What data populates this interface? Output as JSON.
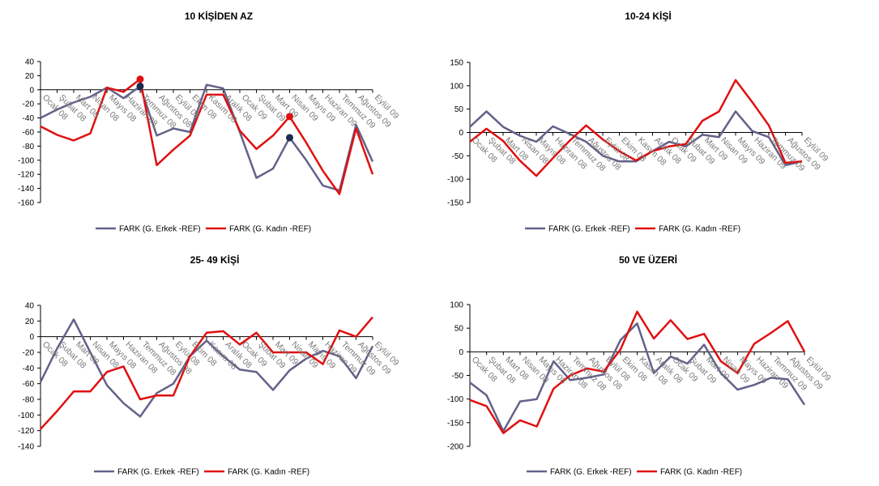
{
  "months": [
    "Ocak 08",
    "Şubat 08",
    "Mart 08",
    "Nisan 08",
    "Mayıs 08",
    "Haziran 08",
    "Temmuz 08",
    "Ağustos 08",
    "Eylül 08",
    "Ekim 08",
    "Kasım 08",
    "Aralık 08",
    "Ocak 09",
    "Şubat 09",
    "Mart 09",
    "Nisan 09",
    "Mayıs 09",
    "Haziran 09",
    "Temmuz 09",
    "Ağustos 09",
    "Eylül 09"
  ],
  "colors": {
    "erkek": "#62628a",
    "kadin": "#e01010",
    "axis": "#000000"
  },
  "chart_data": [
    {
      "type": "line",
      "title": "10 KİŞİDEN AZ",
      "ylim": [
        -160,
        40
      ],
      "yticks": [
        -160,
        -140,
        -120,
        -100,
        -80,
        -60,
        -40,
        -20,
        0,
        20,
        40
      ],
      "categories_ref": "months",
      "highlighted_points": [
        {
          "series": 0,
          "index": 6
        },
        {
          "series": 0,
          "index": 15
        },
        {
          "series": 1,
          "index": 6
        },
        {
          "series": 1,
          "index": 15
        }
      ],
      "series": [
        {
          "name": "FARK (G. Erkek -REF)",
          "values": [
            -40,
            -28,
            -18,
            -10,
            3,
            -12,
            5,
            -65,
            -55,
            -60,
            7,
            2,
            -60,
            -125,
            -112,
            -68,
            -100,
            -136,
            -143,
            -50,
            -102
          ]
        },
        {
          "name": "FARK (G. Kadın -REF)",
          "values": [
            -52,
            -64,
            -72,
            -62,
            3,
            -3,
            15,
            -107,
            -85,
            -65,
            -7,
            -7,
            -58,
            -84,
            -65,
            -38,
            -75,
            -115,
            -148,
            -55,
            -120
          ]
        }
      ],
      "legend": "bottom"
    },
    {
      "type": "line",
      "title": "10-24 KİŞİ",
      "ylim": [
        -150,
        150
      ],
      "yticks": [
        -150,
        -100,
        -50,
        0,
        50,
        100,
        150
      ],
      "categories_ref": "months",
      "series": [
        {
          "name": "FARK (G. Erkek -REF)",
          "values": [
            12,
            45,
            12,
            -7,
            -20,
            13,
            -3,
            -20,
            -50,
            -62,
            -62,
            -40,
            -20,
            -30,
            -5,
            -10,
            45,
            3,
            -10,
            -70,
            -62
          ]
        },
        {
          "name": "FARK (G. Kadın -REF)",
          "values": [
            -20,
            8,
            -18,
            -60,
            -93,
            -55,
            -18,
            15,
            -15,
            -40,
            -60,
            -40,
            -30,
            -25,
            25,
            45,
            112,
            65,
            15,
            -65,
            -62
          ]
        }
      ],
      "legend": "bottom"
    },
    {
      "type": "line",
      "title": "25- 49 KİŞİ",
      "ylim": [
        -140,
        40
      ],
      "yticks": [
        -140,
        -120,
        -100,
        -80,
        -60,
        -40,
        -20,
        0,
        20,
        40
      ],
      "categories_ref": "months",
      "series": [
        {
          "name": "FARK (G. Erkek -REF)",
          "values": [
            -58,
            -15,
            22,
            -20,
            -62,
            -85,
            -102,
            -72,
            -60,
            -25,
            -5,
            -25,
            -42,
            -45,
            -68,
            -43,
            -28,
            -18,
            -25,
            -53,
            -12
          ]
        },
        {
          "name": "FARK (G. Kadın -REF)",
          "values": [
            -118,
            -95,
            -70,
            -70,
            -45,
            -38,
            -80,
            -75,
            -75,
            -25,
            5,
            7,
            -10,
            5,
            -20,
            -20,
            -20,
            -35,
            8,
            0,
            25
          ]
        }
      ],
      "legend": "bottom"
    },
    {
      "type": "line",
      "title": "50 VE ÜZERİ",
      "ylim": [
        -200,
        100
      ],
      "yticks": [
        -200,
        -150,
        -100,
        -50,
        0,
        50,
        100
      ],
      "categories_ref": "months",
      "series": [
        {
          "name": "FARK (G. Erkek -REF)",
          "values": [
            -65,
            -92,
            -168,
            -105,
            -100,
            -20,
            -60,
            -55,
            -48,
            25,
            60,
            -45,
            -10,
            -25,
            15,
            -45,
            -80,
            -70,
            -55,
            -58,
            -112
          ]
        },
        {
          "name": "FARK (G. Kadın -REF)",
          "values": [
            -102,
            -115,
            -172,
            -145,
            -158,
            -78,
            -50,
            -35,
            -42,
            5,
            85,
            28,
            67,
            27,
            38,
            -20,
            -45,
            17,
            40,
            65,
            0
          ]
        }
      ],
      "legend": "bottom"
    }
  ]
}
